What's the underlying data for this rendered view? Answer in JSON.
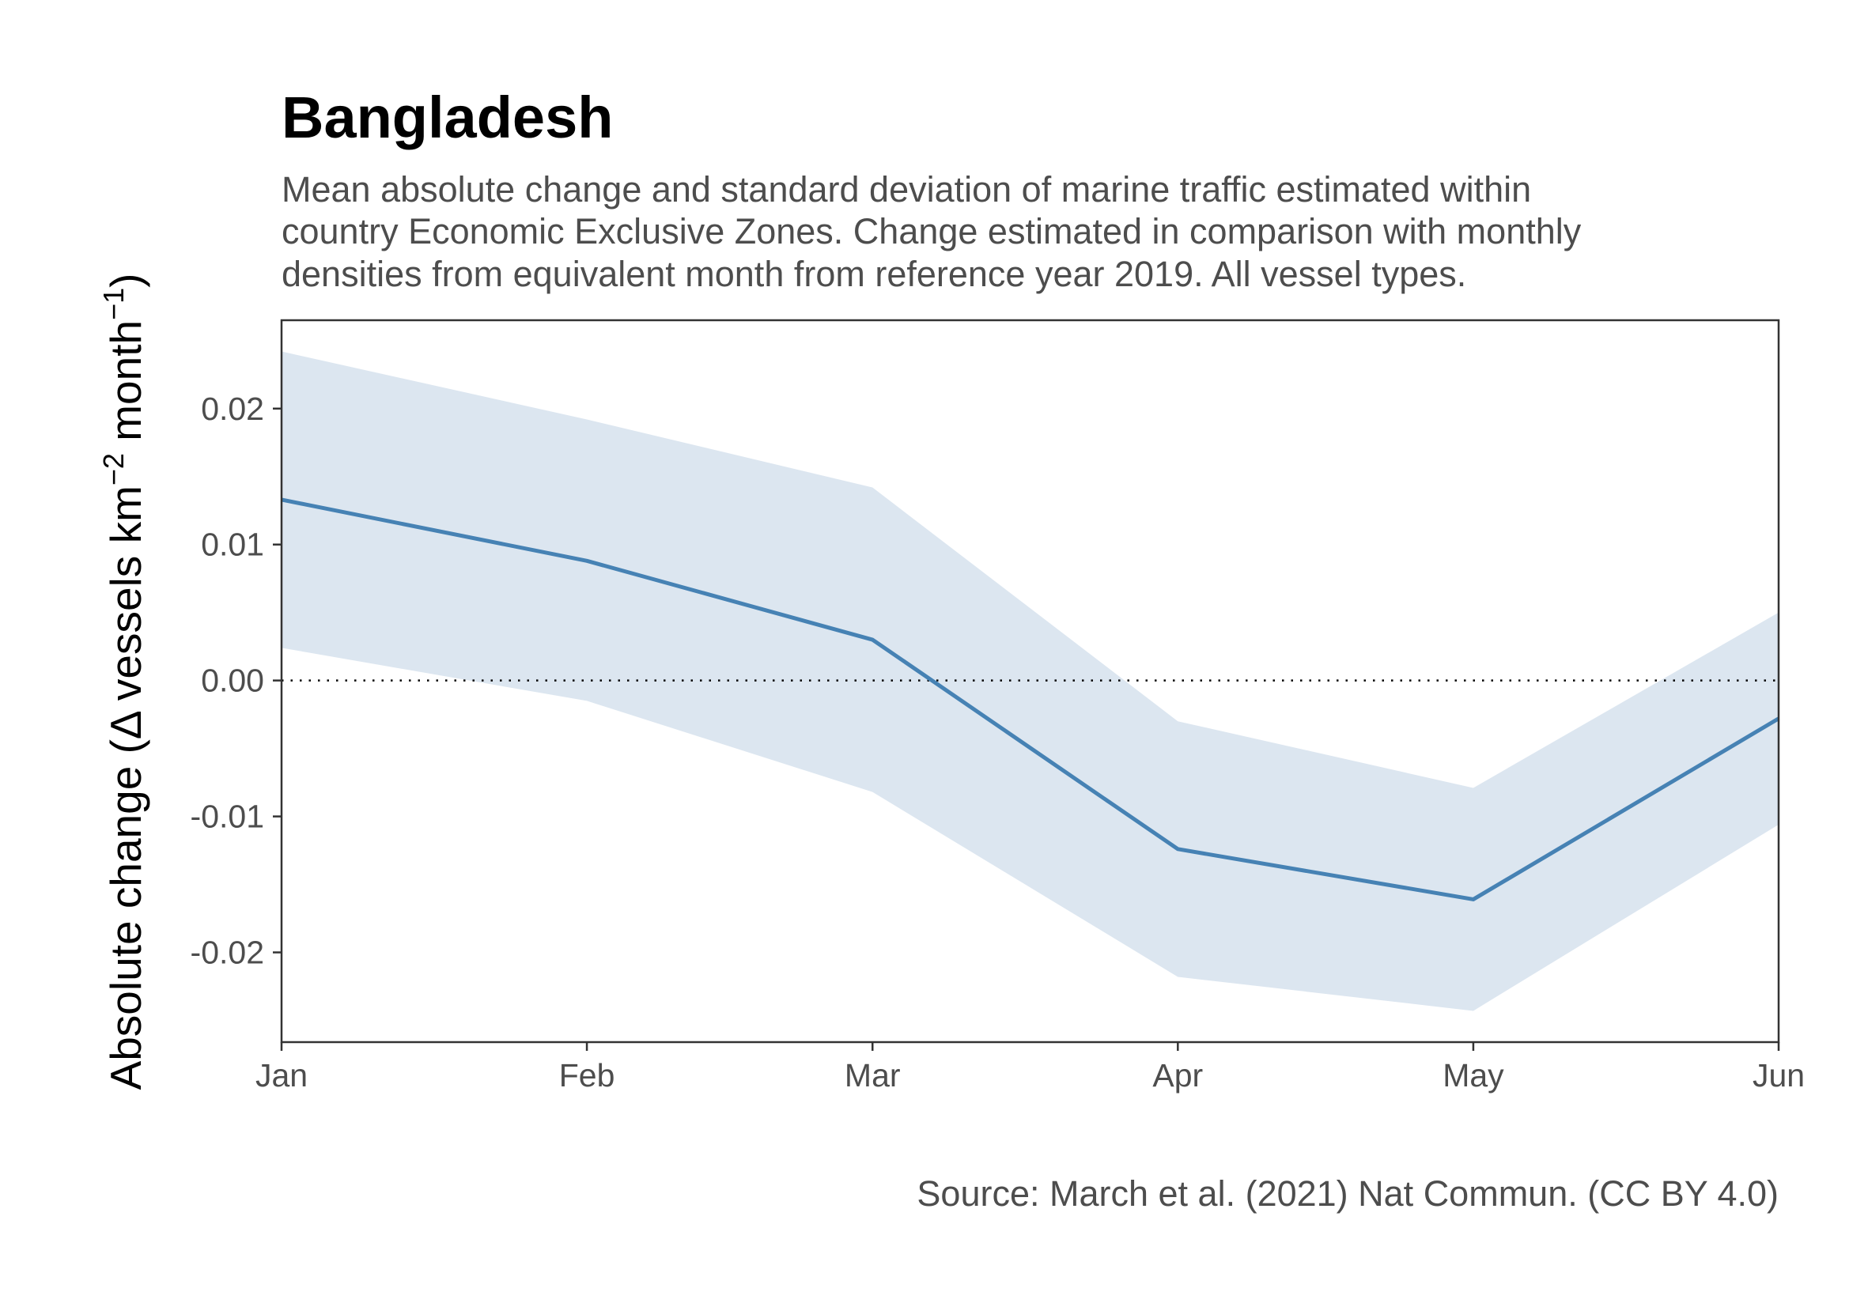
{
  "chart_data": {
    "type": "line",
    "title": "Bangladesh",
    "subtitle_lines": [
      "Mean absolute change and standard deviation of marine traffic estimated within",
      "country Economic Exclusive Zones. Change estimated in comparison with monthly",
      "densities from equivalent month from reference year 2019. All vessel types."
    ],
    "ylabel": {
      "prefix": "Absolute change (",
      "delta": "Δ",
      "mid": " vessels km",
      "exp1": "−2",
      "mid2": " month",
      "exp2": "−1",
      "suffix": ")"
    },
    "caption": "Source: March et al. (2021) Nat Commun. (CC BY 4.0)",
    "categories": [
      "Jan",
      "Feb",
      "Mar",
      "Apr",
      "May",
      "Jun"
    ],
    "x_days": [
      0,
      31,
      60,
      91,
      121,
      152
    ],
    "series": [
      {
        "values": [
          0.0133,
          0.0088,
          0.003,
          -0.0124,
          -0.0161,
          -0.0028
        ],
        "lower": [
          0.0024,
          -0.0015,
          -0.0082,
          -0.0218,
          -0.0243,
          -0.0106
        ],
        "upper": [
          0.0242,
          0.0192,
          0.0142,
          -0.003,
          -0.0079,
          0.005
        ]
      }
    ],
    "y_ticks": [
      0.02,
      0.01,
      0.0,
      -0.01,
      -0.02
    ],
    "y_tick_labels": [
      "0.02",
      "0.01",
      "0.00",
      "-0.01",
      "-0.02"
    ],
    "ylim": [
      -0.0266,
      0.0265
    ],
    "reference_line": 0,
    "grid": false,
    "colors": {
      "line": "#4682b4",
      "ribbon": "#dce6f0",
      "reference": "#000000",
      "axis": "#333333"
    }
  }
}
